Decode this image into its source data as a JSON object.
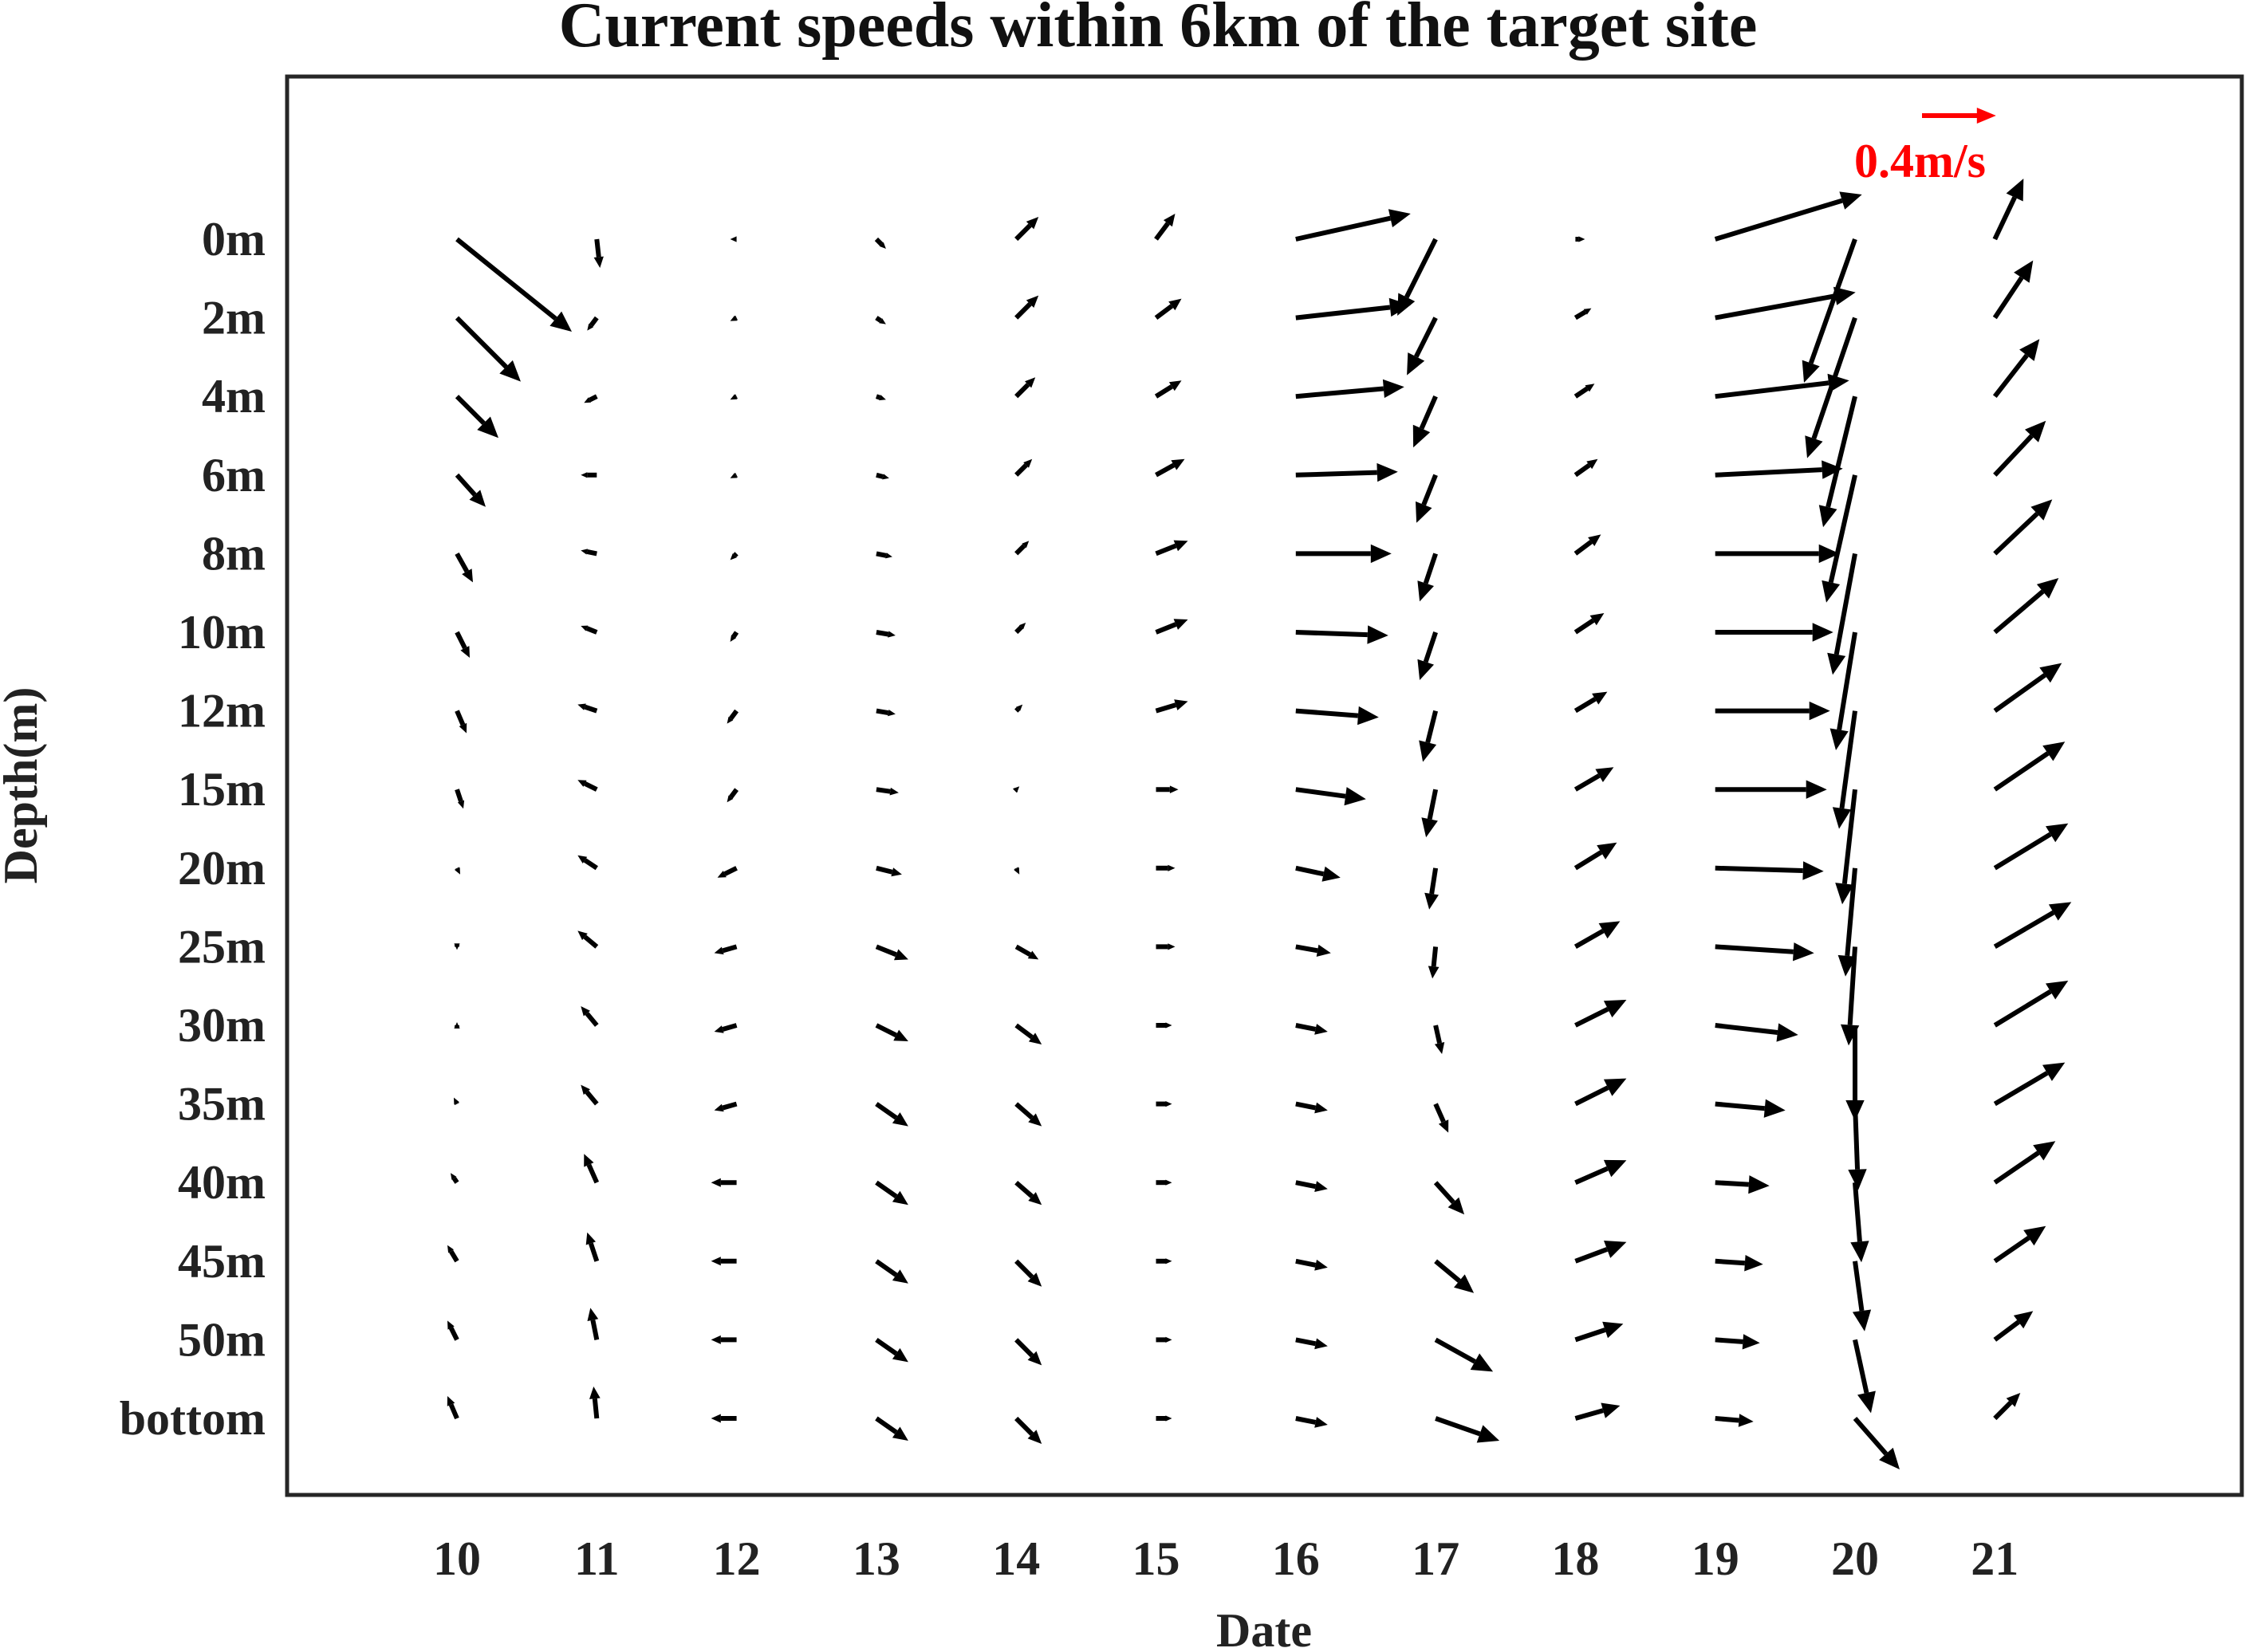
{
  "chart_data": {
    "type": "quiver",
    "title": "Current speeds within 6km of the target site",
    "xlabel": "Date",
    "ylabel": "Depth(m)",
    "x_ticks": [
      "10",
      "11",
      "12",
      "13",
      "14",
      "15",
      "16",
      "17",
      "18",
      "19",
      "20",
      "21"
    ],
    "y_ticks": [
      "0m",
      "2m",
      "4m",
      "6m",
      "8m",
      "10m",
      "12m",
      "15m",
      "20m",
      "25m",
      "30m",
      "35m",
      "40m",
      "45m",
      "50m",
      "bottom"
    ],
    "vector_units": "m/s",
    "reference_vector": {
      "label": "0.4m/s",
      "speed": 0.4,
      "color": "#ff0000"
    },
    "vector_color": "#000000",
    "grid": false,
    "vectors": [
      {
        "date": "10",
        "u": [
          0.36,
          0.2,
          0.13,
          0.09,
          0.05,
          0.04,
          0.03,
          0.02,
          0.01,
          0.0,
          0.0,
          -0.01,
          -0.02,
          -0.03,
          -0.03,
          -0.03
        ],
        "v": [
          -0.29,
          -0.2,
          -0.13,
          -0.1,
          -0.09,
          -0.08,
          -0.07,
          -0.06,
          -0.02,
          -0.01,
          0.01,
          0.02,
          0.03,
          0.05,
          0.06,
          0.07
        ]
      },
      {
        "date": "11",
        "u": [
          0.01,
          -0.03,
          -0.04,
          -0.05,
          -0.05,
          -0.05,
          -0.06,
          -0.06,
          -0.06,
          -0.06,
          -0.05,
          -0.05,
          -0.04,
          -0.03,
          -0.02,
          -0.01
        ],
        "v": [
          -0.09,
          -0.04,
          -0.02,
          0.0,
          0.01,
          0.02,
          0.02,
          0.03,
          0.04,
          0.05,
          0.06,
          0.06,
          0.09,
          0.09,
          0.1,
          0.1
        ]
      },
      {
        "date": "12",
        "u": [
          -0.02,
          -0.02,
          -0.02,
          -0.02,
          -0.02,
          -0.02,
          -0.03,
          -0.03,
          -0.06,
          -0.07,
          -0.07,
          -0.07,
          -0.08,
          -0.08,
          -0.08,
          -0.08
        ],
        "v": [
          0.0,
          -0.01,
          -0.01,
          -0.01,
          -0.02,
          -0.03,
          -0.04,
          -0.04,
          -0.03,
          -0.02,
          -0.02,
          -0.02,
          0.0,
          0.0,
          0.0,
          0.0
        ]
      },
      {
        "date": "13",
        "u": [
          0.03,
          0.03,
          0.03,
          0.04,
          0.05,
          0.06,
          0.06,
          0.07,
          0.08,
          0.1,
          0.1,
          0.1,
          0.1,
          0.1,
          0.1,
          0.1
        ],
        "v": [
          -0.03,
          -0.02,
          -0.01,
          -0.01,
          -0.01,
          -0.01,
          -0.01,
          -0.01,
          -0.02,
          -0.04,
          -0.05,
          -0.07,
          -0.07,
          -0.07,
          -0.07,
          -0.07
        ]
      },
      {
        "date": "14",
        "u": [
          0.07,
          0.07,
          0.06,
          0.05,
          0.04,
          0.03,
          0.02,
          0.01,
          0.01,
          0.07,
          0.08,
          0.08,
          0.08,
          0.08,
          0.08,
          0.08
        ],
        "v": [
          0.07,
          0.07,
          0.06,
          0.05,
          0.04,
          0.03,
          0.02,
          0.01,
          -0.02,
          -0.04,
          -0.06,
          -0.07,
          -0.07,
          -0.08,
          -0.08,
          -0.08
        ]
      },
      {
        "date": "15",
        "u": [
          0.06,
          0.08,
          0.08,
          0.09,
          0.1,
          0.1,
          0.1,
          0.07,
          0.06,
          0.06,
          0.05,
          0.05,
          0.05,
          0.05,
          0.05,
          0.05
        ],
        "v": [
          0.08,
          0.06,
          0.05,
          0.05,
          0.04,
          0.04,
          0.03,
          0.0,
          0.0,
          0.0,
          0.0,
          0.0,
          0.0,
          0.0,
          0.0,
          0.0
        ]
      },
      {
        "date": "16",
        "u": [
          0.36,
          0.36,
          0.34,
          0.32,
          0.3,
          0.29,
          0.26,
          0.22,
          0.14,
          0.11,
          0.1,
          0.1,
          0.1,
          0.1,
          0.1,
          0.1
        ],
        "v": [
          0.08,
          0.04,
          0.03,
          0.01,
          0.0,
          -0.01,
          -0.02,
          -0.03,
          -0.03,
          -0.02,
          -0.02,
          -0.02,
          -0.02,
          -0.02,
          -0.02,
          -0.02
        ]
      },
      {
        "date": "17",
        "u": [
          -0.12,
          -0.09,
          -0.07,
          -0.06,
          -0.05,
          -0.05,
          -0.04,
          -0.03,
          -0.02,
          -0.01,
          0.02,
          0.04,
          0.09,
          0.12,
          0.18,
          0.2
        ],
        "v": [
          -0.24,
          -0.18,
          -0.16,
          -0.15,
          -0.15,
          -0.15,
          -0.16,
          -0.15,
          -0.13,
          -0.1,
          -0.09,
          -0.09,
          -0.1,
          -0.1,
          -0.1,
          -0.07
        ]
      },
      {
        "date": "18",
        "u": [
          0.03,
          0.05,
          0.06,
          0.07,
          0.08,
          0.09,
          0.1,
          0.12,
          0.13,
          0.14,
          0.16,
          0.16,
          0.16,
          0.16,
          0.15,
          0.14
        ],
        "v": [
          0.0,
          0.03,
          0.04,
          0.05,
          0.06,
          0.06,
          0.06,
          0.07,
          0.08,
          0.08,
          0.08,
          0.08,
          0.07,
          0.06,
          0.05,
          0.04
        ]
      },
      {
        "date": "19",
        "u": [
          0.46,
          0.44,
          0.42,
          0.4,
          0.39,
          0.37,
          0.36,
          0.35,
          0.34,
          0.31,
          0.26,
          0.22,
          0.17,
          0.15,
          0.14,
          0.12
        ],
        "v": [
          0.14,
          0.08,
          0.05,
          0.02,
          0.0,
          0.0,
          0.0,
          0.0,
          -0.01,
          -0.02,
          -0.03,
          -0.02,
          -0.01,
          -0.01,
          -0.01,
          -0.01
        ]
      },
      {
        "date": "20",
        "u": [
          -0.16,
          -0.15,
          -0.1,
          -0.09,
          -0.07,
          -0.06,
          -0.05,
          -0.04,
          -0.03,
          -0.02,
          0.0,
          0.01,
          0.02,
          0.03,
          0.05,
          0.14
        ],
        "v": [
          -0.45,
          -0.44,
          -0.41,
          -0.4,
          -0.38,
          -0.37,
          -0.37,
          -0.36,
          -0.34,
          -0.31,
          -0.3,
          -0.27,
          -0.25,
          -0.22,
          -0.23,
          -0.16
        ]
      },
      {
        "date": "21",
        "u": [
          0.09,
          0.12,
          0.14,
          0.16,
          0.18,
          0.2,
          0.21,
          0.22,
          0.23,
          0.24,
          0.23,
          0.22,
          0.19,
          0.16,
          0.12,
          0.08
        ],
        "v": [
          0.19,
          0.18,
          0.18,
          0.17,
          0.17,
          0.17,
          0.15,
          0.15,
          0.14,
          0.14,
          0.14,
          0.13,
          0.13,
          0.11,
          0.09,
          0.08
        ]
      }
    ]
  }
}
